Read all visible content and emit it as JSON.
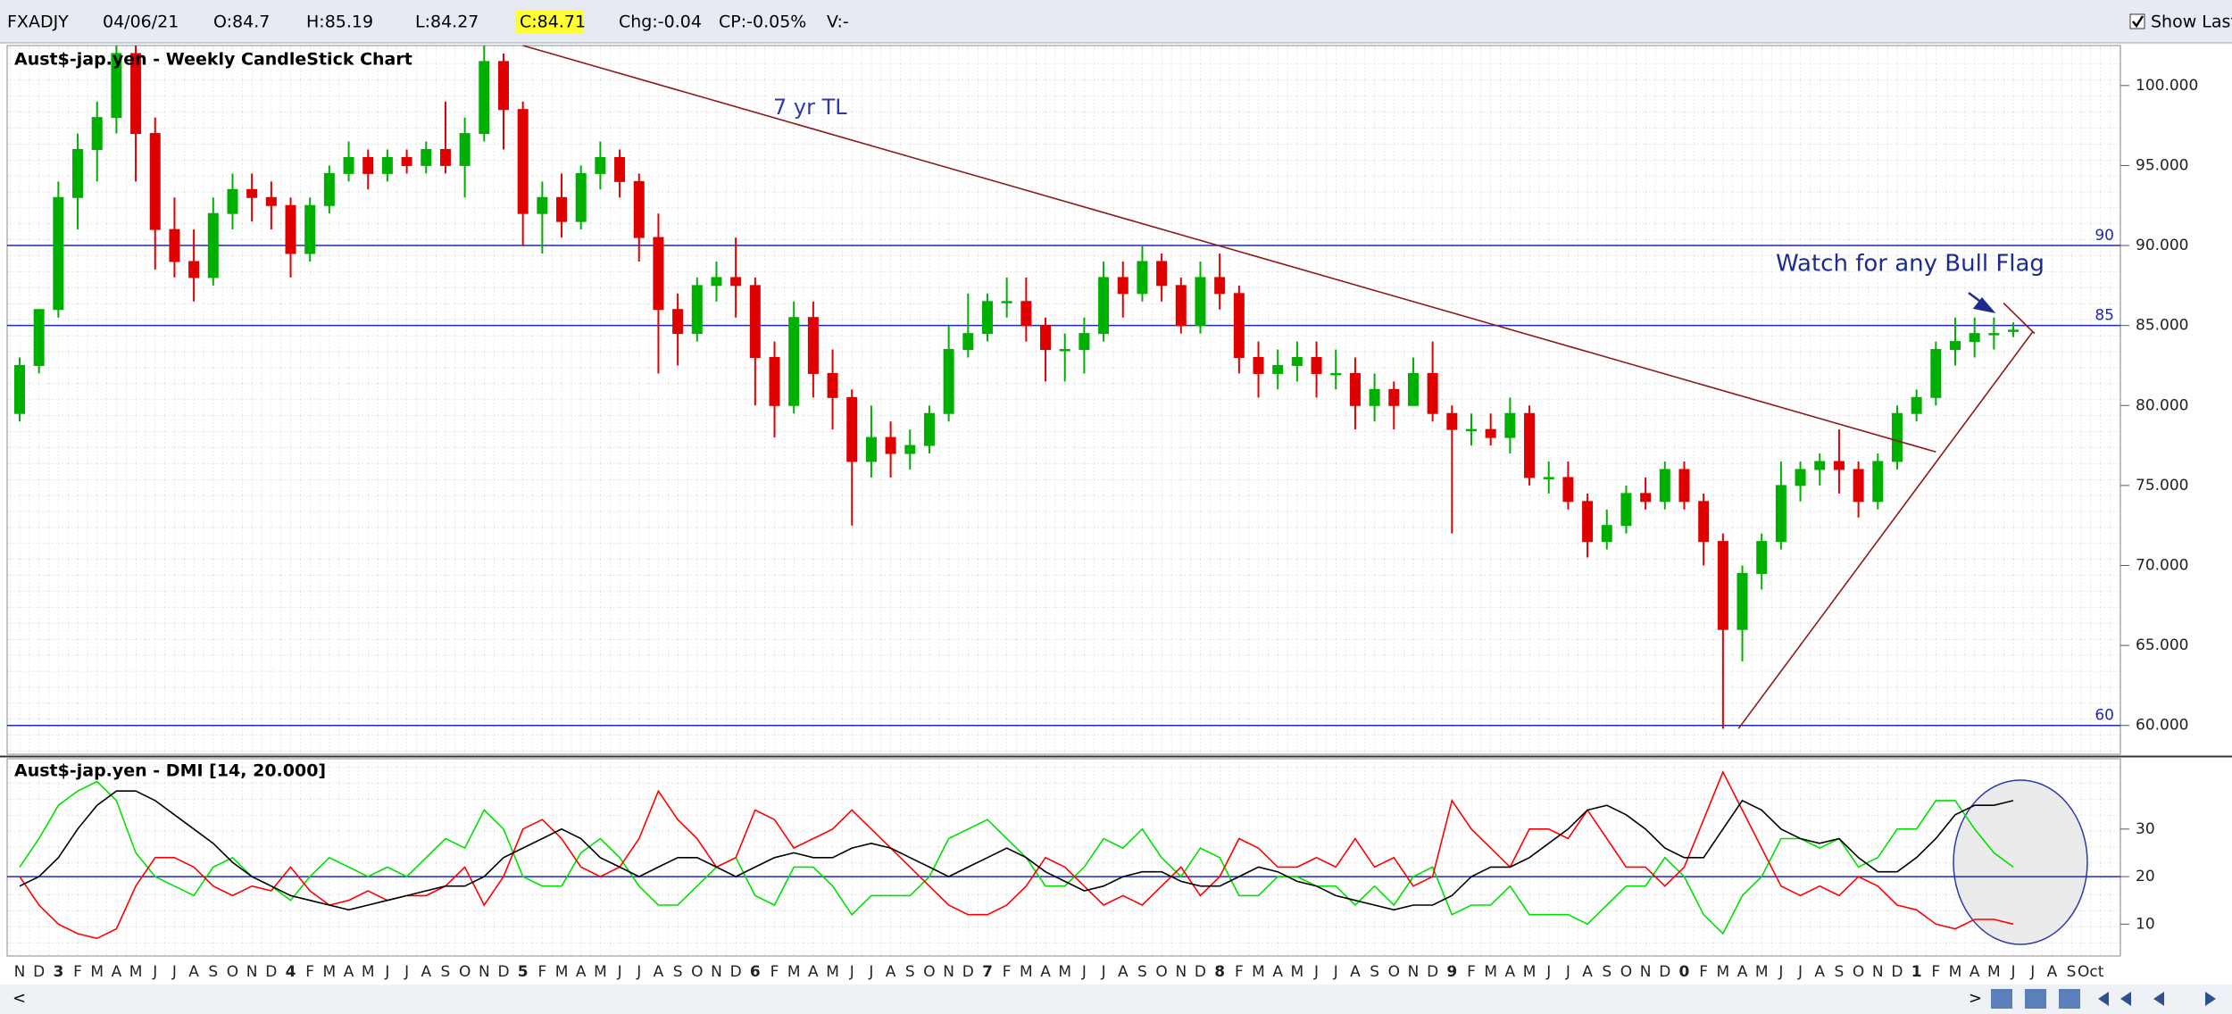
{
  "toolbar": {
    "symbol": "FXADJY",
    "date": "04/06/21",
    "open": "O:84.7",
    "high": "H:85.19",
    "low": "L:84.27",
    "close": "C:84.71",
    "change": "Chg:-0.04",
    "change_pct": "CP:-0.05%",
    "volume": "V:-",
    "show_last": "Show Last"
  },
  "chart_data": [
    {
      "type": "candlestick",
      "title": "Aust$-jap.yen - Weekly CandleStick Chart",
      "up_color": "#00b000",
      "down_color": "#e00000",
      "open": [
        79.5,
        82.5,
        86,
        93,
        96,
        98,
        102,
        97,
        91,
        89,
        88,
        92,
        93.5,
        93,
        92.5,
        89.5,
        92.5,
        94.5,
        95.5,
        94.5,
        95.5,
        95,
        96,
        95,
        97,
        101.5,
        98.5,
        92,
        93,
        91.5,
        94.5,
        95.5,
        94,
        90.5,
        86,
        84.5,
        87.5,
        88,
        87.5,
        83,
        80,
        85.5,
        82,
        80.5,
        76.5,
        78,
        77,
        77.5,
        79.5,
        83.5,
        84.5,
        86.5,
        86.5,
        85,
        83.5,
        83.5,
        84.5,
        88,
        87,
        89,
        87.5,
        85,
        88,
        87,
        83,
        82,
        82.5,
        83,
        82,
        82,
        80,
        81,
        80,
        82,
        79.5,
        78.5,
        78.5,
        78,
        79.5,
        75.5,
        75.5,
        74,
        71.5,
        72.5,
        74.5,
        74,
        76,
        74,
        71.5,
        66,
        69.5,
        71.5,
        75,
        76,
        76.5,
        76,
        74,
        76.5,
        79.5,
        80.5,
        83.5,
        84,
        84.5,
        84.7,
        null,
        null,
        null,
        null
      ],
      "high": [
        83,
        86,
        94,
        97,
        99,
        102.5,
        102.5,
        98,
        93,
        91,
        93,
        94.5,
        94.5,
        94,
        93,
        93,
        95,
        96.5,
        96,
        96,
        96,
        96.5,
        99,
        98,
        102.5,
        102,
        99,
        94,
        94.5,
        95,
        96.5,
        96,
        94.5,
        92,
        87,
        88,
        89,
        90.5,
        88,
        84,
        86.5,
        86.5,
        83.5,
        81,
        80,
        79,
        78.5,
        80,
        85,
        87,
        87,
        88,
        88,
        85.5,
        84.5,
        85.5,
        89,
        89,
        90,
        89.5,
        88,
        89,
        89.5,
        87.5,
        84,
        83.5,
        84,
        84,
        83.5,
        83,
        82,
        81.5,
        83,
        84,
        80,
        79.5,
        79.5,
        80.5,
        80,
        76.5,
        76.5,
        74.5,
        73.5,
        75,
        75.5,
        76.5,
        76.5,
        74.5,
        72,
        70,
        72,
        76.5,
        76.5,
        77,
        78.5,
        76.5,
        77,
        80,
        81,
        84,
        85.5,
        85.5,
        85.5,
        85.19,
        null,
        null,
        null,
        null
      ],
      "low": [
        79,
        82,
        85.5,
        91,
        94,
        97,
        94,
        88.5,
        88,
        86.5,
        87.5,
        91,
        91.5,
        91,
        88,
        89,
        92,
        94,
        93.5,
        94,
        94.5,
        94.5,
        94.5,
        93,
        96.5,
        96,
        90,
        89.5,
        90.5,
        91,
        93.5,
        93,
        89,
        82,
        82.5,
        84,
        86.5,
        85.5,
        80,
        78,
        79.5,
        80.5,
        78.5,
        72.5,
        75.5,
        75.5,
        76,
        77,
        79,
        83,
        84,
        85.5,
        84,
        81.5,
        81.5,
        82,
        84,
        85.5,
        86.5,
        86.5,
        84.5,
        84.5,
        86,
        82,
        80.5,
        81,
        81.5,
        80.5,
        81,
        78.5,
        79,
        78.5,
        80,
        79,
        72,
        77.5,
        77.5,
        77,
        75,
        74.5,
        73.5,
        70.5,
        71,
        72,
        73.5,
        73.5,
        73.5,
        70,
        59.8,
        64,
        68.5,
        71,
        74,
        75,
        74.5,
        73,
        73.5,
        76,
        79,
        80,
        82.5,
        83,
        83.5,
        84.27,
        null,
        null,
        null,
        null
      ],
      "close": [
        82.5,
        86,
        93,
        96,
        98,
        102,
        97,
        91,
        89,
        88,
        92,
        93.5,
        93,
        92.5,
        89.5,
        92.5,
        94.5,
        95.5,
        94.5,
        95.5,
        95,
        96,
        95,
        97,
        101.5,
        98.5,
        92,
        93,
        91.5,
        94.5,
        95.5,
        94,
        90.5,
        86,
        84.5,
        87.5,
        88,
        87.5,
        83,
        80,
        85.5,
        82,
        80.5,
        76.5,
        78,
        77,
        77.5,
        79.5,
        83.5,
        84.5,
        86.5,
        86.5,
        85,
        83.5,
        83.5,
        84.5,
        88,
        87,
        89,
        87.5,
        85,
        88,
        87,
        83,
        82,
        82.5,
        83,
        82,
        82,
        80,
        81,
        80,
        82,
        79.5,
        78.5,
        78.5,
        78,
        79.5,
        75.5,
        75.5,
        74,
        71.5,
        72.5,
        74.5,
        74,
        76,
        74,
        71.5,
        66,
        69.5,
        71.5,
        75,
        76,
        76.5,
        76,
        74,
        76.5,
        79.5,
        80.5,
        83.5,
        84,
        84.5,
        84.5,
        84.71,
        null,
        null,
        null,
        null
      ],
      "ylim": [
        58.2,
        102.5
      ],
      "yticks": [
        {
          "value": 60,
          "label": "60.000"
        },
        {
          "value": 65,
          "label": "65.000"
        },
        {
          "value": 70,
          "label": "70.000"
        },
        {
          "value": 75,
          "label": "75.000"
        },
        {
          "value": 80,
          "label": "80.000"
        },
        {
          "value": 85,
          "label": "85.000"
        },
        {
          "value": 90,
          "label": "90.000"
        },
        {
          "value": 95,
          "label": "95.000"
        },
        {
          "value": 100,
          "label": "100.000"
        }
      ],
      "hlines": [
        90,
        85,
        60
      ],
      "hline_color": "#1c2bb0",
      "trendlines": [
        {
          "label": "7 yr TL",
          "x": [
            26,
            99
          ],
          "y": [
            102.5,
            77.1
          ]
        },
        {
          "x": [
            88.8,
            104
          ],
          "y": [
            59.8,
            84.6
          ]
        },
        {
          "x": [
            102.5,
            104.1
          ],
          "y": [
            86.4,
            84.5
          ]
        }
      ],
      "trendline_color": "#8b1a1a",
      "annotations": [
        "Watch for any Bull Flag"
      ]
    },
    {
      "type": "line",
      "title": "Aust$-jap.yen - DMI [14, 20.000]",
      "categories": [
        "N",
        "D",
        "3",
        "F",
        "M",
        "A",
        "M",
        "J",
        "J",
        "A",
        "S",
        "O",
        "N",
        "D",
        "4",
        "F",
        "M",
        "A",
        "M",
        "J",
        "J",
        "A",
        "S",
        "O",
        "N",
        "D",
        "5",
        "F",
        "M",
        "A",
        "M",
        "J",
        "J",
        "A",
        "S",
        "O",
        "N",
        "D",
        "6",
        "F",
        "M",
        "A",
        "M",
        "J",
        "J",
        "A",
        "S",
        "O",
        "N",
        "D",
        "7",
        "F",
        "M",
        "A",
        "M",
        "J",
        "J",
        "A",
        "S",
        "O",
        "N",
        "D",
        "8",
        "F",
        "M",
        "A",
        "M",
        "J",
        "J",
        "A",
        "S",
        "O",
        "N",
        "D",
        "9",
        "F",
        "M",
        "A",
        "M",
        "J",
        "J",
        "A",
        "S",
        "O",
        "N",
        "D",
        "0",
        "F",
        "M",
        "A",
        "M",
        "J",
        "J",
        "A",
        "S",
        "O",
        "N",
        "D",
        "1",
        "F",
        "M",
        "A",
        "M",
        "J",
        "J",
        "A",
        "S",
        "Oct"
      ],
      "series": [
        {
          "color": "#00e000",
          "values": [
            22,
            28,
            35,
            38,
            40,
            36,
            25,
            20,
            18,
            16,
            22,
            24,
            20,
            18,
            15,
            20,
            24,
            22,
            20,
            22,
            20,
            24,
            28,
            26,
            34,
            30,
            20,
            18,
            18,
            25,
            28,
            24,
            18,
            14,
            14,
            18,
            22,
            24,
            16,
            14,
            22,
            22,
            18,
            12,
            16,
            16,
            16,
            20,
            28,
            30,
            32,
            28,
            24,
            18,
            18,
            22,
            28,
            26,
            30,
            24,
            20,
            26,
            24,
            16,
            16,
            20,
            20,
            18,
            18,
            14,
            18,
            14,
            20,
            22,
            12,
            14,
            14,
            18,
            12,
            12,
            12,
            10,
            14,
            18,
            18,
            24,
            20,
            12,
            8,
            16,
            20,
            28,
            28,
            26,
            28,
            22,
            24,
            30,
            30,
            36,
            36,
            30,
            25,
            22,
            null,
            null,
            null,
            null
          ]
        },
        {
          "color": "#ff0000",
          "values": [
            20,
            14,
            10,
            8,
            7,
            9,
            18,
            24,
            24,
            22,
            18,
            16,
            18,
            17,
            22,
            17,
            14,
            15,
            17,
            15,
            16,
            16,
            18,
            22,
            14,
            20,
            30,
            32,
            28,
            22,
            20,
            22,
            28,
            38,
            32,
            28,
            22,
            24,
            34,
            32,
            26,
            28,
            30,
            34,
            30,
            26,
            22,
            18,
            14,
            12,
            12,
            14,
            18,
            24,
            22,
            18,
            14,
            16,
            14,
            18,
            22,
            16,
            20,
            28,
            26,
            22,
            22,
            24,
            22,
            28,
            22,
            24,
            18,
            20,
            36,
            30,
            26,
            22,
            30,
            30,
            28,
            34,
            28,
            22,
            22,
            18,
            22,
            32,
            42,
            34,
            26,
            18,
            16,
            18,
            16,
            20,
            18,
            14,
            13,
            10,
            9,
            11,
            11,
            10,
            null,
            null,
            null,
            null
          ]
        },
        {
          "color": "#000000",
          "values": [
            18,
            20,
            24,
            30,
            35,
            38,
            38,
            36,
            33,
            30,
            27,
            23,
            20,
            18,
            16,
            15,
            14,
            13,
            14,
            15,
            16,
            17,
            18,
            18,
            20,
            24,
            26,
            28,
            30,
            28,
            24,
            22,
            20,
            22,
            24,
            24,
            22,
            20,
            22,
            24,
            25,
            24,
            24,
            26,
            27,
            26,
            24,
            22,
            20,
            22,
            24,
            26,
            24,
            21,
            19,
            17,
            18,
            20,
            21,
            21,
            19,
            18,
            18,
            20,
            22,
            21,
            19,
            18,
            16,
            15,
            14,
            13,
            14,
            14,
            16,
            20,
            22,
            22,
            24,
            27,
            30,
            34,
            35,
            33,
            30,
            26,
            24,
            24,
            30,
            36,
            34,
            30,
            28,
            27,
            28,
            24,
            21,
            21,
            24,
            28,
            33,
            35,
            35,
            36,
            null,
            null,
            null,
            null
          ]
        }
      ],
      "ylim": [
        3.3,
        44.8
      ],
      "yticks": [
        10,
        20,
        30
      ],
      "hlines": [
        20
      ],
      "hline_color": "#1c2bb0"
    }
  ]
}
